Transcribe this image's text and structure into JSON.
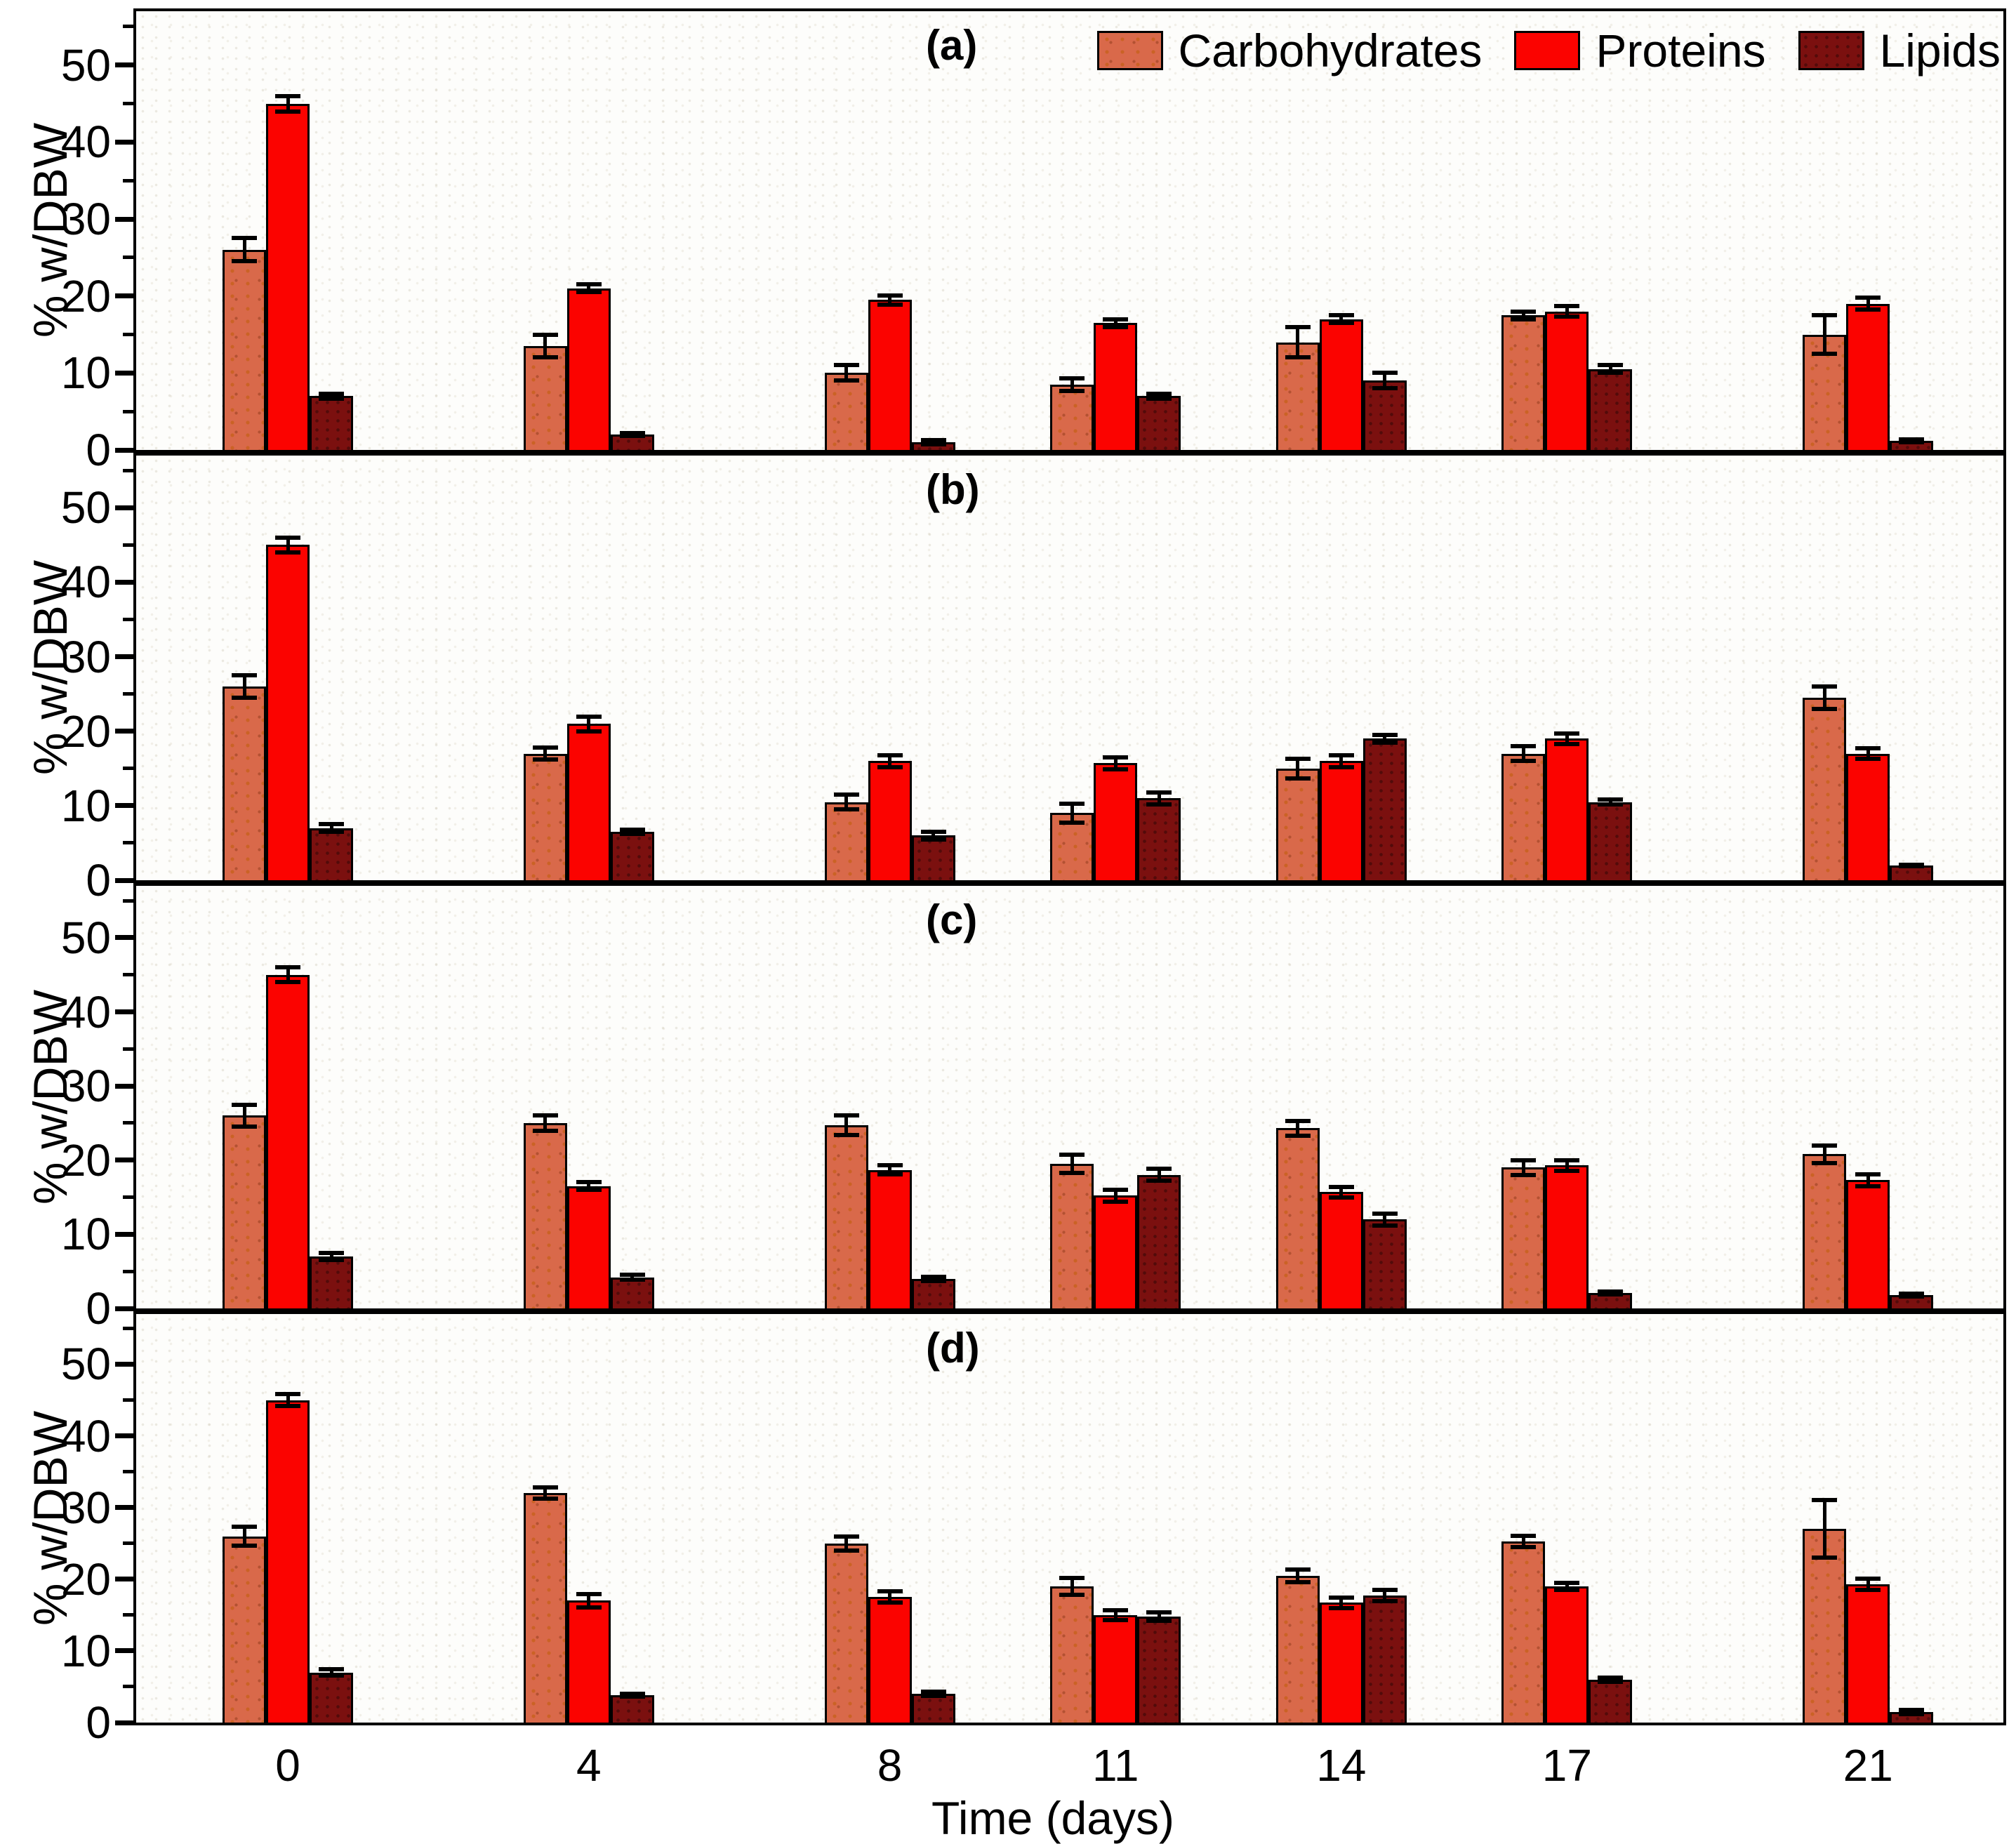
{
  "chart_data": {
    "type": "bar",
    "title": "",
    "xlabel": "Time (days)",
    "ylabel": "% w/DBW",
    "categories": [
      0,
      4,
      8,
      11,
      14,
      17,
      21
    ],
    "yticks": [
      0,
      10,
      20,
      30,
      40,
      50
    ],
    "minor_yticks": [
      5,
      15,
      25,
      35,
      45,
      55
    ],
    "ylim": [
      0,
      57
    ],
    "x_axis_linear_in_days": true,
    "legend_position": "top-right-inside-panel-a",
    "grid": false,
    "series_names": [
      "Carbohydrates",
      "Proteins",
      "Lipids"
    ],
    "colors": {
      "carbohydrates": "#D9694A",
      "proteins": "#FB0300",
      "lipids": "#7B100F",
      "error_bars": "#000000",
      "panel_border": "#000000",
      "background": "#FFFFFF"
    },
    "panels": [
      {
        "label": "(a)",
        "series": [
          {
            "name": "Carbohydrates",
            "values": [
              26,
              13.5,
              10,
              8.5,
              14,
              17.5,
              15
            ],
            "errors": [
              1.5,
              1.5,
              1.0,
              0.8,
              2.0,
              0.5,
              2.5
            ]
          },
          {
            "name": "Proteins",
            "values": [
              45,
              21,
              19.5,
              16.5,
              17,
              18,
              19
            ],
            "errors": [
              1.0,
              0.5,
              0.6,
              0.5,
              0.5,
              0.7,
              0.8
            ]
          },
          {
            "name": "Lipids",
            "values": [
              7,
              2,
              1,
              7,
              9,
              10.5,
              1.2
            ],
            "errors": [
              0.3,
              0.2,
              0.3,
              0.3,
              1.0,
              0.5,
              0.2
            ]
          }
        ]
      },
      {
        "label": "(b)",
        "series": [
          {
            "name": "Carbohydrates",
            "values": [
              26,
              17,
              10.5,
              9,
              15,
              17,
              24.5
            ],
            "errors": [
              1.5,
              0.8,
              1.0,
              1.3,
              1.3,
              1.0,
              1.5
            ]
          },
          {
            "name": "Proteins",
            "values": [
              45,
              21,
              16,
              15.7,
              16,
              19,
              17
            ],
            "errors": [
              1.0,
              1.0,
              0.8,
              0.8,
              0.8,
              0.7,
              0.7
            ]
          },
          {
            "name": "Lipids",
            "values": [
              7,
              6.5,
              6,
              11,
              19,
              10.5,
              2
            ],
            "errors": [
              0.5,
              0.3,
              0.5,
              0.8,
              0.5,
              0.3,
              0.1
            ]
          }
        ]
      },
      {
        "label": "(c)",
        "series": [
          {
            "name": "Carbohydrates",
            "values": [
              26,
              25,
              24.7,
              19.5,
              24.3,
              19,
              20.8
            ],
            "errors": [
              1.5,
              1.0,
              1.3,
              1.2,
              1.0,
              1.0,
              1.2
            ]
          },
          {
            "name": "Proteins",
            "values": [
              45,
              16.5,
              18.7,
              15.2,
              15.7,
              19.3,
              17.3
            ],
            "errors": [
              1.0,
              0.5,
              0.6,
              0.8,
              0.7,
              0.7,
              0.8
            ]
          },
          {
            "name": "Lipids",
            "values": [
              7,
              4.2,
              4,
              18,
              12,
              2.1,
              1.8
            ],
            "errors": [
              0.5,
              0.3,
              0.3,
              0.8,
              0.8,
              0.2,
              0.2
            ]
          }
        ]
      },
      {
        "label": "(d)",
        "series": [
          {
            "name": "Carbohydrates",
            "values": [
              26,
              32,
              25,
              19,
              20.5,
              25.3,
              27
            ],
            "errors": [
              1.3,
              0.8,
              1.0,
              1.2,
              0.9,
              0.8,
              4.0
            ]
          },
          {
            "name": "Proteins",
            "values": [
              45,
              17,
              17.5,
              15,
              16.7,
              19,
              19.3
            ],
            "errors": [
              0.8,
              0.9,
              0.8,
              0.7,
              0.7,
              0.5,
              0.8
            ]
          },
          {
            "name": "Lipids",
            "values": [
              7,
              3.8,
              4,
              14.8,
              17.7,
              6,
              1.5
            ],
            "errors": [
              0.4,
              0.2,
              0.3,
              0.6,
              0.8,
              0.3,
              0.3
            ]
          }
        ]
      }
    ]
  }
}
